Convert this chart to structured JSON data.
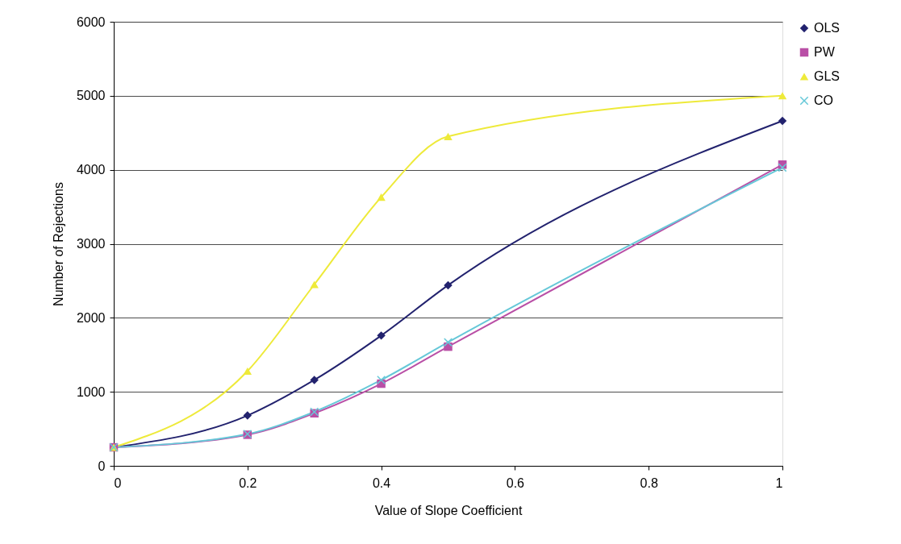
{
  "chart_data": {
    "type": "line",
    "xlabel": "Value of Slope Coefficient",
    "ylabel": "Number of Rejections",
    "x": [
      0,
      0.2,
      0.3,
      0.4,
      0.5,
      1
    ],
    "xlim": [
      0,
      1
    ],
    "xticks": [
      0,
      0.2,
      0.4,
      0.6,
      0.8,
      1
    ],
    "ylim": [
      0,
      6000
    ],
    "yticks": [
      0,
      1000,
      2000,
      3000,
      4000,
      5000,
      6000
    ],
    "grid": "y",
    "legend": "right",
    "line_style": "solid",
    "series": [
      {
        "name": "OLS",
        "color": "#22226e",
        "marker": "diamond",
        "values": [
          250,
          680,
          1160,
          1760,
          2440,
          4660
        ]
      },
      {
        "name": "PW",
        "color": "#b94fa6",
        "marker": "square",
        "values": [
          250,
          420,
          710,
          1110,
          1610,
          4070
        ]
      },
      {
        "name": "GLS",
        "color": "#eeea3a",
        "marker": "triangle",
        "values": [
          250,
          1280,
          2450,
          3630,
          4450,
          5000
        ]
      },
      {
        "name": "CO",
        "color": "#66c8d8",
        "marker": "cross",
        "values": [
          250,
          430,
          730,
          1160,
          1670,
          4030
        ]
      }
    ]
  }
}
